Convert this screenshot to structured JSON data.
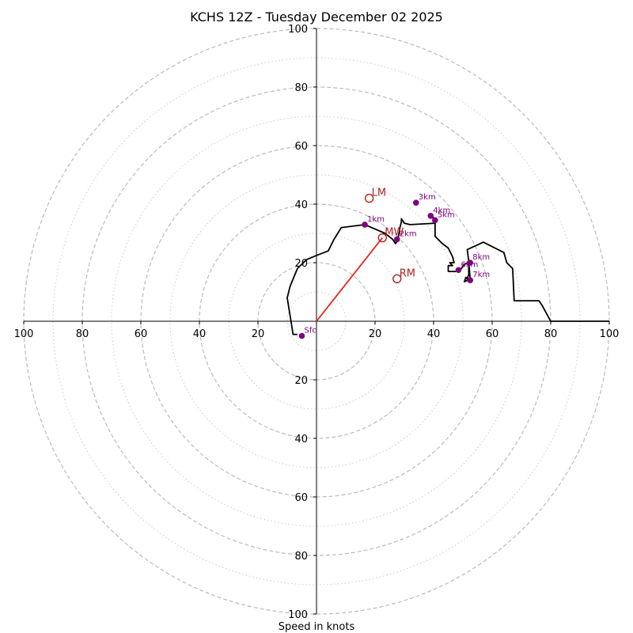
{
  "chart_data": {
    "type": "hodograph",
    "title": "KCHS 12Z - Tuesday December 02 2025",
    "xlabel": "Speed in knots",
    "units": "knots",
    "max_speed": 100,
    "rings_dashed": [
      20,
      40,
      60,
      80,
      100
    ],
    "rings_dotted": [
      10,
      30,
      50,
      70,
      90
    ],
    "ticks": [
      "20",
      "40",
      "60",
      "80",
      "100"
    ],
    "wind_profile": [
      [
        -6.5,
        -4.5
      ],
      [
        -8,
        -4.5
      ],
      [
        -10,
        8
      ],
      [
        -9,
        12
      ],
      [
        -6.5,
        18
      ],
      [
        -3.5,
        21
      ],
      [
        0,
        22.5
      ],
      [
        4,
        24
      ],
      [
        6,
        28
      ],
      [
        8.5,
        32
      ],
      [
        16.5,
        33
      ],
      [
        20,
        31.5
      ],
      [
        23.5,
        30
      ],
      [
        26,
        28
      ],
      [
        27,
        26.5
      ],
      [
        27.8,
        27.8
      ],
      [
        28.5,
        32
      ],
      [
        29,
        34
      ],
      [
        29,
        35
      ],
      [
        30,
        33.5
      ],
      [
        32,
        33
      ],
      [
        40.5,
        33.5
      ],
      [
        39.5,
        36
      ],
      [
        40.5,
        34.5
      ],
      [
        40.5,
        29
      ],
      [
        43,
        26.5
      ],
      [
        45,
        25
      ],
      [
        46.5,
        22
      ],
      [
        47,
        20
      ],
      [
        45.5,
        20
      ],
      [
        46.5,
        19
      ],
      [
        45,
        19
      ],
      [
        45,
        17
      ],
      [
        47.5,
        17
      ],
      [
        48.5,
        17.5
      ],
      [
        49.5,
        18
      ],
      [
        50.5,
        19.5
      ],
      [
        52,
        20
      ],
      [
        52,
        16
      ],
      [
        51.5,
        14.5
      ],
      [
        51,
        15
      ],
      [
        50.5,
        13.5
      ],
      [
        51.5,
        14
      ],
      [
        52.5,
        14
      ],
      [
        52,
        20.5
      ],
      [
        51.5,
        24.5
      ],
      [
        57,
        27
      ],
      [
        64,
        23.5
      ],
      [
        65,
        20
      ],
      [
        67,
        18
      ],
      [
        67.5,
        7
      ],
      [
        76,
        7
      ],
      [
        77,
        5.5
      ],
      [
        80,
        0
      ],
      [
        100,
        0
      ]
    ],
    "height_markers": [
      {
        "label": "Sfc",
        "u": -5,
        "v": -5
      },
      {
        "label": "1km",
        "u": 16.5,
        "v": 33
      },
      {
        "label": "2km",
        "u": 27.5,
        "v": 28
      },
      {
        "label": "3km",
        "u": 34,
        "v": 40.5
      },
      {
        "label": "4km",
        "u": 39,
        "v": 36
      },
      {
        "label": "5km",
        "u": 40.5,
        "v": 34.5
      },
      {
        "label": "6km",
        "u": 48.5,
        "v": 17.5
      },
      {
        "label": "7km",
        "u": 52.5,
        "v": 14
      },
      {
        "label": "8km",
        "u": 52.5,
        "v": 20
      }
    ],
    "storm_motions": [
      {
        "label": "LM",
        "u": 18,
        "v": 42
      },
      {
        "label": "MW",
        "u": 22.5,
        "v": 28.5
      },
      {
        "label": "RM",
        "u": 27.5,
        "v": 14.5
      }
    ],
    "shear_vector": {
      "u0": 0,
      "v0": 0,
      "u1": 22.5,
      "v1": 28.5
    }
  },
  "colors": {
    "profile": "#000000",
    "markers": "#800080",
    "storm_motion": "#b22222",
    "shear_vector": "#e8261b",
    "ring_dashed": "#bbbbbb",
    "ring_dotted": "#cccccc"
  }
}
